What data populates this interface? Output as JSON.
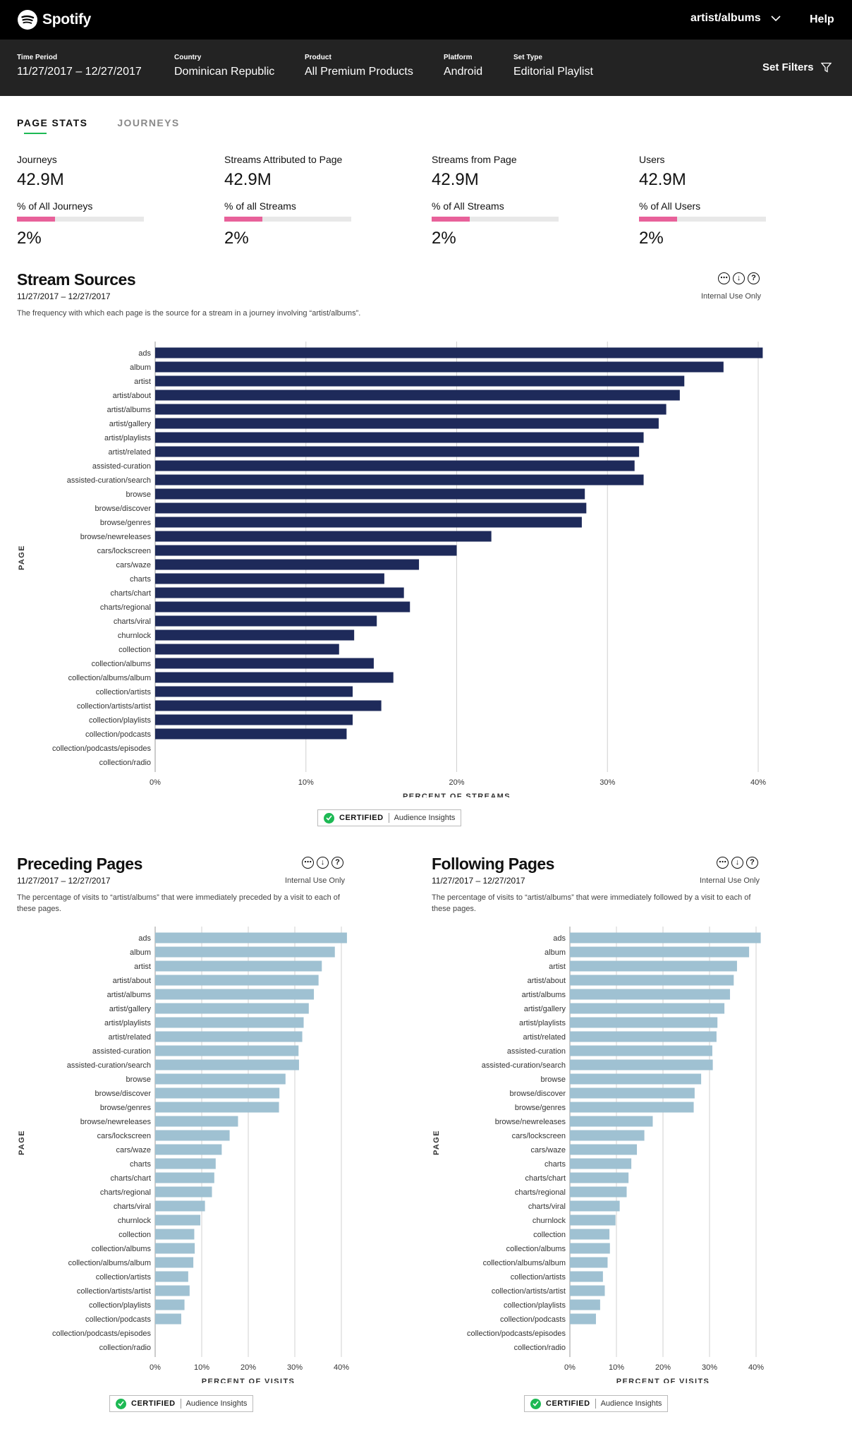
{
  "app": {
    "brand": "Spotify",
    "breadcrumb": "artist/albums",
    "help": "Help"
  },
  "filters": [
    {
      "label": "Time Period",
      "value": "11/27/2017 – 12/27/2017"
    },
    {
      "label": "Country",
      "value": "Dominican Republic"
    },
    {
      "label": "Product",
      "value": "All Premium Products"
    },
    {
      "label": "Platform",
      "value": "Android"
    },
    {
      "label": "Set Type",
      "value": "Editorial Playlist"
    }
  ],
  "set_filters": "Set Filters",
  "tabs": [
    {
      "label": "PAGE STATS",
      "active": true
    },
    {
      "label": "JOURNEYS",
      "active": false
    }
  ],
  "stats": [
    {
      "label": "Journeys",
      "value": "42.9M",
      "pct_label": "% of All Journeys",
      "pct": "2%",
      "fill_fraction": 0.3
    },
    {
      "label": "Streams Attributed to Page",
      "value": "42.9M",
      "pct_label": "% of all Streams",
      "pct": "2%",
      "fill_fraction": 0.3
    },
    {
      "label": "Streams from Page",
      "value": "42.9M",
      "pct_label": "% of All Streams",
      "pct": "2%",
      "fill_fraction": 0.3
    },
    {
      "label": "Users",
      "value": "42.9M",
      "pct_label": "% of All Users",
      "pct": "2%",
      "fill_fraction": 0.3
    }
  ],
  "colors": {
    "accent": "#1db954",
    "stat_fill": "#e8619a",
    "dark_bar": "#1e2a5a",
    "light_bar": "#9fc1d2"
  },
  "icons": [
    "spotify-logo",
    "chevron-down-icon",
    "filter-icon",
    "more-icon",
    "download-icon",
    "help-icon",
    "check-icon"
  ],
  "sections": {
    "stream_sources": {
      "title": "Stream Sources",
      "date": "11/27/2017 – 12/27/2017",
      "description": "The frequency with which each page is the source for a stream in a journey involving “artist/albums”.",
      "internal": "Internal Use Only"
    },
    "preceding": {
      "title": "Preceding Pages",
      "date": "11/27/2017 – 12/27/2017",
      "description": "The percentage of visits to “artist/albums” that were immediately preceded by a visit to each of these pages.",
      "internal": "Internal Use Only"
    },
    "following": {
      "title": "Following Pages",
      "date": "11/27/2017 – 12/27/2017",
      "description": "The percentage of visits to “artist/albums” that were immediately followed by a visit to each of these pages.",
      "internal": "Internal Use Only"
    }
  },
  "certified": {
    "label": "CERTIFIED",
    "source": "Audience Insights"
  },
  "chart_data": [
    {
      "type": "bar",
      "orientation": "horizontal",
      "ylabel": "PAGE",
      "xlabel": "PERCENT OF STREAMS",
      "xlim": [
        0,
        40
      ],
      "xticks": [
        "0%",
        "10%",
        "20%",
        "30%",
        "40%"
      ],
      "grid": true,
      "categories": [
        "ads",
        "album",
        "artist",
        "artist/about",
        "artist/albums",
        "artist/gallery",
        "artist/playlists",
        "artist/related",
        "assisted-curation",
        "assisted-curation/search",
        "browse",
        "browse/discover",
        "browse/genres",
        "browse/newreleases",
        "cars/lockscreen",
        "cars/waze",
        "charts",
        "charts/chart",
        "charts/regional",
        "charts/viral",
        "churnlock",
        "collection",
        "collection/albums",
        "collection/albums/album",
        "collection/artists",
        "collection/artists/artist",
        "collection/playlists",
        "collection/podcasts",
        "collection/podcasts/episodes",
        "collection/radio"
      ],
      "values": [
        40.3,
        37.7,
        35.1,
        34.8,
        33.9,
        33.4,
        32.4,
        32.1,
        31.8,
        32.4,
        28.5,
        28.6,
        28.3,
        22.3,
        20.0,
        17.5,
        15.2,
        16.5,
        16.9,
        14.7,
        13.2,
        12.2,
        14.5,
        15.8,
        13.1,
        15.0,
        13.1,
        12.7,
        0,
        0
      ]
    },
    {
      "type": "bar",
      "orientation": "horizontal",
      "ylabel": "PAGE",
      "xlabel": "PERCENT OF VISITS",
      "xlim": [
        0,
        40
      ],
      "xticks": [
        "0%",
        "10%",
        "20%",
        "30%",
        "40%"
      ],
      "grid": true,
      "categories": [
        "ads",
        "album",
        "artist",
        "artist/about",
        "artist/albums",
        "artist/gallery",
        "artist/playlists",
        "artist/related",
        "assisted-curation",
        "assisted-curation/search",
        "browse",
        "browse/discover",
        "browse/genres",
        "browse/newreleases",
        "cars/lockscreen",
        "cars/waze",
        "charts",
        "charts/chart",
        "charts/regional",
        "charts/viral",
        "churnlock",
        "collection",
        "collection/albums",
        "collection/albums/album",
        "collection/artists",
        "collection/artists/artist",
        "collection/playlists",
        "collection/podcasts",
        "collection/podcasts/episodes",
        "collection/radio"
      ],
      "values": [
        41.2,
        38.6,
        35.8,
        35.1,
        34.1,
        33.0,
        31.9,
        31.6,
        30.8,
        30.9,
        28.0,
        26.7,
        26.6,
        17.8,
        16.0,
        14.3,
        13.0,
        12.7,
        12.2,
        10.7,
        9.7,
        8.4,
        8.5,
        8.2,
        7.1,
        7.4,
        6.3,
        5.6,
        0,
        0
      ]
    },
    {
      "type": "bar",
      "orientation": "horizontal",
      "ylabel": "PAGE",
      "xlabel": "PERCENT OF VISITS",
      "xlim": [
        0,
        40
      ],
      "xticks": [
        "0%",
        "10%",
        "20%",
        "30%",
        "40%"
      ],
      "grid": true,
      "categories": [
        "ads",
        "album",
        "artist",
        "artist/about",
        "artist/albums",
        "artist/gallery",
        "artist/playlists",
        "artist/related",
        "assisted-curation",
        "assisted-curation/search",
        "browse",
        "browse/discover",
        "browse/genres",
        "browse/newreleases",
        "cars/lockscreen",
        "cars/waze",
        "charts",
        "charts/chart",
        "charts/regional",
        "charts/viral",
        "churnlock",
        "collection",
        "collection/albums",
        "collection/albums/album",
        "collection/artists",
        "collection/artists/artist",
        "collection/playlists",
        "collection/podcasts",
        "collection/podcasts/episodes",
        "collection/radio"
      ],
      "values": [
        41.0,
        38.5,
        35.9,
        35.2,
        34.4,
        33.2,
        31.7,
        31.5,
        30.6,
        30.7,
        28.2,
        26.8,
        26.6,
        17.8,
        16.0,
        14.4,
        13.2,
        12.6,
        12.2,
        10.7,
        9.8,
        8.5,
        8.6,
        8.1,
        7.1,
        7.5,
        6.5,
        5.6,
        0,
        0
      ]
    }
  ]
}
